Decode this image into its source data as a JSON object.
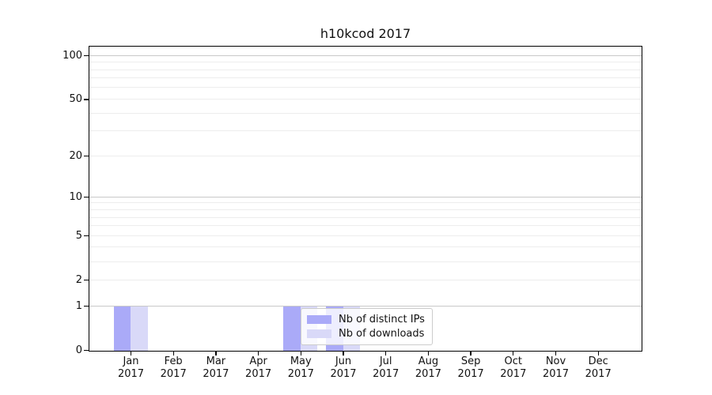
{
  "title": "h10kcod 2017",
  "colors": {
    "bar_distinct_ips": "#aaaaf8",
    "bar_downloads": "#d9d9f8",
    "major_grid": "#c9c9c9",
    "minor_grid": "#ededed",
    "spine": "#000000",
    "legend_border": "#cccccc",
    "text": "#111111"
  },
  "legend": {
    "items": [
      {
        "label": "Nb of distinct IPs"
      },
      {
        "label": "Nb of downloads"
      }
    ]
  },
  "chart_data": {
    "type": "bar",
    "title": "h10kcod 2017",
    "categories": [
      "Jan 2017",
      "Feb 2017",
      "Mar 2017",
      "Apr 2017",
      "May 2017",
      "Jun 2017",
      "Jul 2017",
      "Aug 2017",
      "Sep 2017",
      "Oct 2017",
      "Nov 2017",
      "Dec 2017"
    ],
    "x_months": [
      "Jan",
      "Feb",
      "Mar",
      "Apr",
      "May",
      "Jun",
      "Jul",
      "Aug",
      "Sep",
      "Oct",
      "Nov",
      "Dec"
    ],
    "x_year": "2017",
    "series": [
      {
        "name": "Nb of distinct IPs",
        "color": "#aaaaf8",
        "values": [
          1,
          0,
          0,
          0,
          1,
          1,
          0,
          0,
          0,
          0,
          0,
          0
        ]
      },
      {
        "name": "Nb of downloads",
        "color": "#d9d9f8",
        "values": [
          1,
          0,
          0,
          0,
          1,
          1,
          0,
          0,
          0,
          0,
          0,
          0
        ]
      }
    ],
    "yscale": "log1p",
    "ylim": [
      0,
      115
    ],
    "y_ticks": [
      {
        "label": "100",
        "value": 100
      },
      {
        "label": "50",
        "value": 50
      },
      {
        "label": "20",
        "value": 20
      },
      {
        "label": "10",
        "value": 10
      },
      {
        "label": "5",
        "value": 5
      },
      {
        "label": "2",
        "value": 2
      },
      {
        "label": "1",
        "value": 1
      },
      {
        "label": "0",
        "value": 0
      }
    ],
    "y_major_gridlines": [
      1,
      10,
      100
    ],
    "y_minor_gridlines": [
      2,
      3,
      4,
      5,
      6,
      7,
      8,
      9,
      20,
      30,
      40,
      50,
      60,
      70,
      80,
      90
    ],
    "grid": true,
    "legend_position": "lower center",
    "xlabel": "",
    "ylabel": ""
  }
}
